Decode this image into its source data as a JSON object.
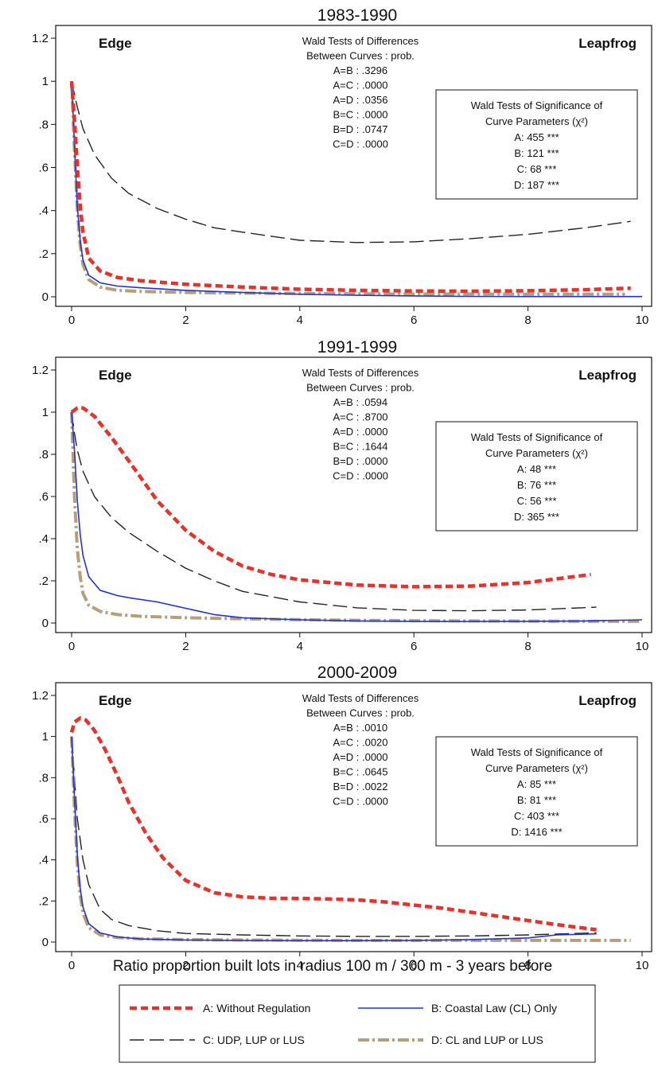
{
  "figure": {
    "xlabel": "Ratio proportion built lots in radius 100 m / 300 m - 3 years before"
  },
  "series_styles": {
    "A": {
      "color": "#e8312a",
      "width": 4.5,
      "dash": "9,5"
    },
    "B": {
      "color": "#2331d8",
      "width": 1.6,
      "dash": ""
    },
    "C": {
      "color": "#222222",
      "width": 1.4,
      "dash": "18,7"
    },
    "D": {
      "color": "#b59f7a",
      "width": 4,
      "dash": "14,4,3,4"
    }
  },
  "legend": {
    "items": [
      {
        "key": "A",
        "label": "A: Without Regulation"
      },
      {
        "key": "B",
        "label": "B: Coastal Law (CL) Only"
      },
      {
        "key": "C",
        "label": "C: UDP, LUP or LUS"
      },
      {
        "key": "D",
        "label": "D: CL and LUP or LUS"
      }
    ]
  },
  "chart_data": [
    {
      "type": "line",
      "title": "1983-1990",
      "xlim": [
        0,
        10
      ],
      "ylim": [
        0,
        1.2
      ],
      "xticks": [
        0,
        2,
        4,
        6,
        8,
        10
      ],
      "xtick_labels": [
        "0",
        "2",
        "4",
        "6",
        "8",
        "10"
      ],
      "yticks": [
        0,
        0.2,
        0.4,
        0.6,
        0.8,
        1,
        1.2
      ],
      "ytick_labels": [
        "0",
        ".2",
        ".4",
        ".6",
        ".8",
        "1",
        "1.2"
      ],
      "corner_left": "Edge",
      "corner_right": "Leapfrog",
      "differences_box": [
        "Wald Tests of Differences",
        "Between Curves : prob.",
        "A=B : .3296",
        "A=C : .0000",
        "A=D : .0356",
        "B=C : .0000",
        "B=D : .0747",
        "C=D : .0000"
      ],
      "significance_box": [
        "Wald Tests of Significance of",
        "Curve Parameters (χ²)",
        "A: 455 ***",
        "B: 121 ***",
        "C: 68 ***",
        "D: 187 ***"
      ],
      "series": [
        {
          "key": "A",
          "x": [
            0,
            0.05,
            0.1,
            0.15,
            0.2,
            0.3,
            0.5,
            0.8,
            1.2,
            2,
            3,
            4,
            5,
            6,
            7,
            8,
            9,
            9.8
          ],
          "y": [
            1.0,
            0.82,
            0.6,
            0.42,
            0.3,
            0.18,
            0.12,
            0.09,
            0.075,
            0.058,
            0.045,
            0.035,
            0.03,
            0.027,
            0.026,
            0.028,
            0.033,
            0.04
          ]
        },
        {
          "key": "B",
          "x": [
            0,
            0.05,
            0.1,
            0.15,
            0.2,
            0.3,
            0.5,
            0.8,
            1.2,
            2,
            3,
            4,
            5,
            6,
            7,
            8,
            9,
            10
          ],
          "y": [
            1.0,
            0.7,
            0.42,
            0.26,
            0.17,
            0.1,
            0.065,
            0.05,
            0.042,
            0.03,
            0.02,
            0.012,
            0.007,
            0.004,
            0.002,
            0.001,
            0.001,
            0.001
          ]
        },
        {
          "key": "C",
          "x": [
            0,
            0.1,
            0.2,
            0.4,
            0.7,
            1,
            1.5,
            2,
            2.5,
            3,
            4,
            5,
            6,
            7,
            8,
            9,
            9.8
          ],
          "y": [
            1.0,
            0.88,
            0.78,
            0.66,
            0.55,
            0.48,
            0.41,
            0.36,
            0.32,
            0.3,
            0.262,
            0.252,
            0.255,
            0.27,
            0.29,
            0.32,
            0.35
          ]
        },
        {
          "key": "D",
          "x": [
            0,
            0.05,
            0.1,
            0.15,
            0.2,
            0.3,
            0.5,
            0.8,
            1.2,
            2,
            3,
            4,
            5,
            6,
            7,
            8,
            9,
            9.7
          ],
          "y": [
            1.0,
            0.68,
            0.4,
            0.24,
            0.15,
            0.08,
            0.045,
            0.03,
            0.025,
            0.02,
            0.017,
            0.015,
            0.014,
            0.013,
            0.013,
            0.012,
            0.012,
            0.012
          ]
        }
      ]
    },
    {
      "type": "line",
      "title": "1991-1999",
      "xlim": [
        0,
        10
      ],
      "ylim": [
        0,
        1.2
      ],
      "xticks": [
        0,
        2,
        4,
        6,
        8,
        10
      ],
      "xtick_labels": [
        "0",
        "2",
        "4",
        "6",
        "8",
        "10"
      ],
      "yticks": [
        0,
        0.2,
        0.4,
        0.6,
        0.8,
        1,
        1.2
      ],
      "ytick_labels": [
        "0",
        ".2",
        ".4",
        ".6",
        ".8",
        "1",
        "1.2"
      ],
      "corner_left": "Edge",
      "corner_right": "Leapfrog",
      "differences_box": [
        "Wald Tests of Differences",
        "Between Curves : prob.",
        "A=B : .0594",
        "A=C : .8700",
        "A=D : .0000",
        "B=C : .1644",
        "B=D : .0000",
        "C=D : .0000"
      ],
      "significance_box": [
        "Wald Tests of Significance of",
        "Curve Parameters (χ²)",
        "A: 48 ***",
        "B: 76 ***",
        "C: 56 ***",
        "D: 365 ***"
      ],
      "series": [
        {
          "key": "A",
          "x": [
            0,
            0.1,
            0.2,
            0.4,
            0.7,
            1,
            1.5,
            2,
            2.5,
            3,
            3.5,
            4,
            5,
            6,
            7,
            8,
            9.1
          ],
          "y": [
            1.0,
            1.02,
            1.02,
            0.98,
            0.88,
            0.77,
            0.58,
            0.44,
            0.34,
            0.27,
            0.23,
            0.205,
            0.18,
            0.172,
            0.175,
            0.192,
            0.23
          ]
        },
        {
          "key": "B",
          "x": [
            0,
            0.05,
            0.1,
            0.15,
            0.2,
            0.3,
            0.5,
            0.8,
            1,
            1.5,
            2,
            2.5,
            3,
            4,
            5,
            6,
            7,
            8,
            9,
            10
          ],
          "y": [
            1.0,
            0.82,
            0.58,
            0.42,
            0.32,
            0.22,
            0.155,
            0.13,
            0.12,
            0.1,
            0.07,
            0.04,
            0.025,
            0.015,
            0.01,
            0.008,
            0.007,
            0.008,
            0.01,
            0.015
          ]
        },
        {
          "key": "C",
          "x": [
            0,
            0.05,
            0.1,
            0.2,
            0.4,
            0.7,
            1,
            1.5,
            2,
            2.5,
            3,
            4,
            5,
            6,
            7,
            8,
            9.2
          ],
          "y": [
            1.0,
            0.9,
            0.82,
            0.72,
            0.6,
            0.5,
            0.43,
            0.34,
            0.26,
            0.2,
            0.15,
            0.1,
            0.072,
            0.06,
            0.058,
            0.062,
            0.075
          ]
        },
        {
          "key": "D",
          "x": [
            0,
            0.05,
            0.1,
            0.15,
            0.2,
            0.3,
            0.5,
            0.8,
            1.2,
            2,
            3,
            4,
            5,
            6,
            7,
            8,
            9,
            10
          ],
          "y": [
            1.0,
            0.6,
            0.35,
            0.22,
            0.14,
            0.085,
            0.055,
            0.04,
            0.032,
            0.025,
            0.02,
            0.016,
            0.013,
            0.011,
            0.01,
            0.009,
            0.008,
            0.008
          ]
        }
      ]
    },
    {
      "type": "line",
      "title": "2000-2009",
      "xlim": [
        0,
        10
      ],
      "ylim": [
        0,
        1.2
      ],
      "xticks": [
        0,
        2,
        4,
        6,
        8,
        10
      ],
      "xtick_labels": [
        "0",
        "2",
        "4",
        "6",
        "8",
        "10"
      ],
      "yticks": [
        0,
        0.2,
        0.4,
        0.6,
        0.8,
        1,
        1.2
      ],
      "ytick_labels": [
        "0",
        ".2",
        ".4",
        ".6",
        ".8",
        "1",
        "1.2"
      ],
      "corner_left": "Edge",
      "corner_right": "Leapfrog",
      "differences_box": [
        "Wald Tests of Differences",
        "Between Curves : prob.",
        "A=B : .0010",
        "A=C : .0020",
        "A=D : .0000",
        "B=C : .0645",
        "B=D : .0022",
        "C=D : .0000"
      ],
      "significance_box": [
        "Wald Tests of Significance of",
        "Curve Parameters (χ²)",
        "A: 85 ***",
        "B: 81 ***",
        "C: 403 ***",
        "D: 1416 ***"
      ],
      "series": [
        {
          "key": "A",
          "x": [
            0,
            0.05,
            0.15,
            0.25,
            0.4,
            0.6,
            0.8,
            1,
            1.3,
            1.6,
            2,
            2.5,
            3,
            3.5,
            4,
            4.5,
            5,
            5.5,
            6,
            6.5,
            7,
            7.5,
            8,
            8.5,
            9.2
          ],
          "y": [
            1.02,
            1.07,
            1.09,
            1.08,
            1.03,
            0.93,
            0.81,
            0.68,
            0.53,
            0.41,
            0.3,
            0.24,
            0.22,
            0.213,
            0.212,
            0.21,
            0.205,
            0.195,
            0.18,
            0.165,
            0.145,
            0.125,
            0.105,
            0.085,
            0.06
          ]
        },
        {
          "key": "B",
          "x": [
            0,
            0.05,
            0.1,
            0.15,
            0.2,
            0.3,
            0.5,
            0.8,
            1.2,
            2,
            3,
            4,
            5,
            6,
            7,
            8,
            8.5,
            9.2
          ],
          "y": [
            1.0,
            0.7,
            0.42,
            0.26,
            0.17,
            0.09,
            0.045,
            0.025,
            0.015,
            0.01,
            0.008,
            0.007,
            0.007,
            0.008,
            0.012,
            0.02,
            0.035,
            0.04
          ]
        },
        {
          "key": "C",
          "x": [
            0,
            0.05,
            0.1,
            0.2,
            0.3,
            0.5,
            0.7,
            1,
            1.5,
            2,
            3,
            4,
            5,
            6,
            7,
            8,
            9.2
          ],
          "y": [
            1.0,
            0.8,
            0.6,
            0.4,
            0.28,
            0.16,
            0.11,
            0.08,
            0.055,
            0.042,
            0.035,
            0.03,
            0.028,
            0.028,
            0.03,
            0.035,
            0.045
          ]
        },
        {
          "key": "D",
          "x": [
            0,
            0.05,
            0.1,
            0.15,
            0.2,
            0.3,
            0.5,
            0.8,
            1.2,
            2,
            3,
            4,
            5,
            6,
            7,
            8,
            9,
            9.8
          ],
          "y": [
            1.0,
            0.65,
            0.38,
            0.23,
            0.14,
            0.07,
            0.035,
            0.022,
            0.016,
            0.012,
            0.01,
            0.009,
            0.008,
            0.008,
            0.008,
            0.008,
            0.008,
            0.008
          ]
        }
      ]
    }
  ]
}
